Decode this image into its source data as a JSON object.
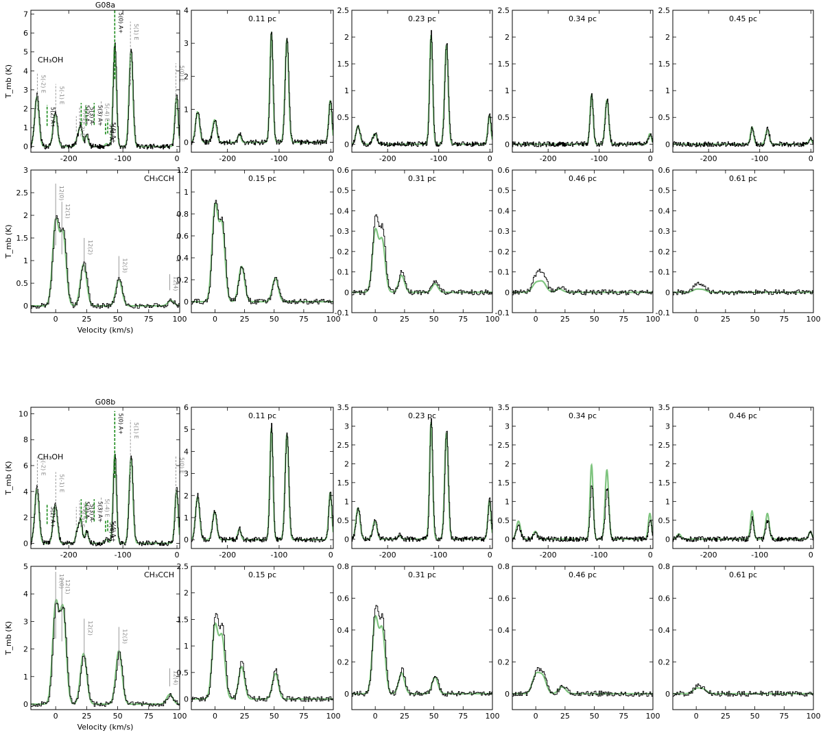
{
  "labels": {
    "velocity_xlabel": "Velocity (km/s)",
    "tmb_ylabel": "T_mb (K)"
  },
  "chart_data": [
    {
      "type": "line",
      "source": "G08a",
      "row": "ch3oh",
      "title": "G08a",
      "molecule": "CH₃OH",
      "xlim": [
        -270,
        5
      ],
      "ylim": [
        -0.3,
        7.2
      ],
      "xticks": [
        -200,
        -100,
        0
      ],
      "yticks": [
        0,
        1,
        2,
        3,
        4,
        5,
        6,
        7
      ],
      "model_scale": 1.0,
      "peaks": [
        [
          -259,
          2.7,
          4
        ],
        [
          -225,
          1.8,
          4
        ],
        [
          -184,
          0.45,
          3
        ],
        [
          -178,
          1.1,
          3
        ],
        [
          -167,
          0.6,
          3
        ],
        [
          -130,
          0.15,
          3
        ],
        [
          -115,
          5.5,
          3
        ],
        [
          -85,
          5.2,
          3.5
        ],
        [
          -1,
          2.7,
          3
        ]
      ],
      "markers": [
        {
          "x": -258,
          "h": 3.9,
          "text": "5(-2) E",
          "style": "gray"
        },
        {
          "x": -240,
          "h": 2.2,
          "text": "5(2) A+",
          "style": "green"
        },
        {
          "x": -224,
          "h": 3.3,
          "text": "5(-1) E",
          "style": "gray"
        },
        {
          "x": -186,
          "h": 1.6,
          "text": "5(-3) E",
          "style": "gray"
        },
        {
          "x": -180,
          "h": 2.1,
          "text": "5(3) E",
          "style": "gray"
        },
        {
          "x": -177,
          "h": 2.3,
          "text": "5(2) A-",
          "style": "green"
        },
        {
          "x": -168,
          "h": 2.2,
          "text": "5(3) A-",
          "style": "green"
        },
        {
          "x": -153,
          "h": 2.3,
          "text": "5(3) A+",
          "style": "green"
        },
        {
          "x": -140,
          "h": 2.4,
          "text": "5(-4) E",
          "style": "gray"
        },
        {
          "x": -132,
          "h": 1.3,
          "text": "5(4) A-",
          "style": "green"
        },
        {
          "x": -128,
          "h": 1.4,
          "text": "5(4) A+",
          "style": "green"
        },
        {
          "x": -115,
          "h": 7.2,
          "text": "5(0) A+",
          "style": "green"
        },
        {
          "x": -86,
          "h": 6.6,
          "text": "5(1) E",
          "style": "gray"
        },
        {
          "x": -2,
          "h": 4.4,
          "text": "5(0) E",
          "style": "gray"
        }
      ]
    },
    {
      "type": "line",
      "source": "G08a",
      "row": "ch3oh",
      "title": "0.11 pc",
      "xlim": [
        -270,
        5
      ],
      "ylim": [
        -0.3,
        4.0
      ],
      "xticks": [
        -200,
        -100,
        0
      ],
      "yticks": [
        0,
        1,
        2,
        3,
        4
      ],
      "model_scale": 1.0,
      "peaks": [
        [
          -258,
          0.95,
          4
        ],
        [
          -225,
          0.7,
          4
        ],
        [
          -177,
          0.25,
          3
        ],
        [
          -115,
          3.4,
          3
        ],
        [
          -85,
          3.2,
          3.5
        ],
        [
          -1,
          1.3,
          3
        ]
      ],
      "markers": []
    },
    {
      "type": "line",
      "source": "G08a",
      "row": "ch3oh",
      "title": "0.23 pc",
      "xlim": [
        -270,
        5
      ],
      "ylim": [
        -0.15,
        2.5
      ],
      "xticks": [
        -200,
        -100,
        0
      ],
      "yticks": [
        0.0,
        0.5,
        1.0,
        1.5,
        2.0,
        2.5
      ],
      "model_scale": 1.0,
      "peaks": [
        [
          -258,
          0.35,
          4
        ],
        [
          -225,
          0.2,
          4
        ],
        [
          -115,
          2.1,
          3
        ],
        [
          -85,
          1.9,
          3.5
        ],
        [
          -1,
          0.55,
          3
        ]
      ],
      "markers": []
    },
    {
      "type": "line",
      "source": "G08a",
      "row": "ch3oh",
      "title": "0.34 pc",
      "xlim": [
        -270,
        5
      ],
      "ylim": [
        -0.15,
        2.5
      ],
      "xticks": [
        -200,
        -100,
        0
      ],
      "yticks": [
        0.0,
        0.5,
        1.0,
        1.5,
        2.0,
        2.5
      ],
      "model_scale": 1.0,
      "peaks": [
        [
          -115,
          0.95,
          3
        ],
        [
          -85,
          0.85,
          3.5
        ],
        [
          -1,
          0.2,
          3
        ]
      ],
      "markers": []
    },
    {
      "type": "line",
      "source": "G08a",
      "row": "ch3oh",
      "title": "0.45 pc",
      "xlim": [
        -270,
        5
      ],
      "ylim": [
        -0.15,
        2.5
      ],
      "xticks": [
        -200,
        -100,
        0
      ],
      "yticks": [
        0.0,
        0.5,
        1.0,
        1.5,
        2.0,
        2.5
      ],
      "model_scale": 1.0,
      "peaks": [
        [
          -115,
          0.33,
          3
        ],
        [
          -85,
          0.28,
          3.5
        ],
        [
          -1,
          0.1,
          3
        ]
      ],
      "markers": []
    },
    {
      "type": "line",
      "source": "G08a",
      "row": "ch3cch",
      "title": "",
      "molecule": "CH₃CCH",
      "xlim": [
        -20,
        100
      ],
      "ylim": [
        -0.15,
        3.0
      ],
      "xticks": [
        0,
        25,
        50,
        75,
        100
      ],
      "yticks": [
        0.0,
        0.5,
        1.0,
        1.5,
        2.0,
        2.5,
        3.0
      ],
      "model_scale": 1.0,
      "peaks": [
        [
          0,
          1.9,
          2.5
        ],
        [
          6,
          1.6,
          2.5
        ],
        [
          22.5,
          0.95,
          2.5
        ],
        [
          51,
          0.6,
          2.5
        ],
        [
          93,
          0.12,
          2.5
        ]
      ],
      "markers": [
        {
          "x": 0,
          "h": 2.7,
          "text": "12(0)",
          "style": "gray"
        },
        {
          "x": 5,
          "h": 2.3,
          "text": "12(1)",
          "style": "gray"
        },
        {
          "x": 23,
          "h": 1.5,
          "text": "12(2)",
          "style": "gray"
        },
        {
          "x": 51,
          "h": 1.1,
          "text": "12(3)",
          "style": "gray"
        },
        {
          "x": 92,
          "h": 0.7,
          "text": "12(4)",
          "style": "gray"
        }
      ]
    },
    {
      "type": "line",
      "source": "G08a",
      "row": "ch3cch",
      "title": "0.15 pc",
      "xlim": [
        -20,
        100
      ],
      "ylim": [
        -0.1,
        1.2
      ],
      "xticks": [
        0,
        25,
        50,
        75,
        100
      ],
      "yticks": [
        0.0,
        0.2,
        0.4,
        0.6,
        0.8,
        1.0,
        1.2
      ],
      "model_scale": 1.0,
      "peaks": [
        [
          0,
          0.88,
          2.5
        ],
        [
          6,
          0.7,
          2.5
        ],
        [
          22.5,
          0.33,
          2.5
        ],
        [
          51,
          0.22,
          2.5
        ]
      ],
      "markers": []
    },
    {
      "type": "line",
      "source": "G08a",
      "row": "ch3cch",
      "title": "0.31 pc",
      "xlim": [
        -20,
        100
      ],
      "ylim": [
        -0.1,
        0.6
      ],
      "xticks": [
        0,
        25,
        50,
        75,
        100
      ],
      "yticks": [
        -0.1,
        0.0,
        0.1,
        0.2,
        0.3,
        0.4,
        0.5,
        0.6
      ],
      "model_scale": 0.85,
      "peaks": [
        [
          0,
          0.36,
          2.5
        ],
        [
          6,
          0.3,
          2.5
        ],
        [
          22.5,
          0.1,
          2.5
        ],
        [
          51,
          0.05,
          2.5
        ]
      ],
      "markers": []
    },
    {
      "type": "line",
      "source": "G08a",
      "row": "ch3cch",
      "title": "0.46 pc",
      "xlim": [
        -20,
        100
      ],
      "ylim": [
        -0.1,
        0.6
      ],
      "xticks": [
        0,
        25,
        50,
        75,
        100
      ],
      "yticks": [
        -0.1,
        0.0,
        0.1,
        0.2,
        0.3,
        0.4,
        0.5,
        0.6
      ],
      "model_scale": 0.55,
      "peaks": [
        [
          0,
          0.08,
          3
        ],
        [
          6,
          0.09,
          3
        ],
        [
          20,
          0.03,
          3
        ]
      ],
      "markers": []
    },
    {
      "type": "line",
      "source": "G08a",
      "row": "ch3cch",
      "title": "0.61 pc",
      "xlim": [
        -20,
        100
      ],
      "ylim": [
        -0.1,
        0.6
      ],
      "xticks": [
        0,
        25,
        50,
        75,
        100
      ],
      "yticks": [
        -0.1,
        0.0,
        0.1,
        0.2,
        0.3,
        0.4,
        0.5,
        0.6
      ],
      "model_scale": 0.4,
      "peaks": [
        [
          0,
          0.035,
          3
        ],
        [
          6,
          0.03,
          3
        ]
      ],
      "markers": []
    },
    {
      "type": "line",
      "source": "G08b",
      "row": "ch3oh",
      "title": "G08b",
      "molecule": "CH₃OH",
      "xlim": [
        -270,
        5
      ],
      "ylim": [
        -0.4,
        10.5
      ],
      "xticks": [
        -200,
        -100,
        0
      ],
      "yticks": [
        0,
        2,
        4,
        6,
        8,
        10
      ],
      "model_scale": 1.0,
      "peaks": [
        [
          -259,
          4.3,
          4
        ],
        [
          -225,
          3.0,
          4
        ],
        [
          -184,
          1.0,
          3
        ],
        [
          -178,
          1.7,
          3
        ],
        [
          -167,
          1.0,
          3
        ],
        [
          -130,
          0.3,
          3
        ],
        [
          -115,
          7.0,
          3
        ],
        [
          -85,
          6.8,
          3.5
        ],
        [
          -1,
          4.2,
          3
        ]
      ],
      "markers": [
        {
          "x": -258,
          "h": 6.8,
          "text": "5(-2) E",
          "style": "gray"
        },
        {
          "x": -240,
          "h": 3.0,
          "text": "5(2) A+",
          "style": "green"
        },
        {
          "x": -224,
          "h": 5.5,
          "text": "5(-1) E",
          "style": "gray"
        },
        {
          "x": -186,
          "h": 2.8,
          "text": "5(-3) E",
          "style": "gray"
        },
        {
          "x": -180,
          "h": 3.3,
          "text": "5(3) E",
          "style": "gray"
        },
        {
          "x": -177,
          "h": 3.4,
          "text": "5(2) A-",
          "style": "green"
        },
        {
          "x": -168,
          "h": 3.2,
          "text": "5(3) A-",
          "style": "green"
        },
        {
          "x": -153,
          "h": 3.4,
          "text": "5(3) A+",
          "style": "green"
        },
        {
          "x": -140,
          "h": 3.6,
          "text": "5(-4) E",
          "style": "gray"
        },
        {
          "x": -132,
          "h": 1.8,
          "text": "5(4) A-",
          "style": "green"
        },
        {
          "x": -128,
          "h": 1.9,
          "text": "5(4) A+",
          "style": "green"
        },
        {
          "x": -115,
          "h": 10.2,
          "text": "5(0) A+",
          "style": "green"
        },
        {
          "x": -86,
          "h": 9.5,
          "text": "5(1) E",
          "style": "gray"
        },
        {
          "x": -2,
          "h": 6.8,
          "text": "5(0) E",
          "style": "gray"
        }
      ]
    },
    {
      "type": "line",
      "source": "G08b",
      "row": "ch3oh",
      "title": "0.11 pc",
      "xlim": [
        -270,
        5
      ],
      "ylim": [
        -0.4,
        6.0
      ],
      "xticks": [
        -200,
        -100,
        0
      ],
      "yticks": [
        0,
        1,
        2,
        3,
        4,
        5,
        6
      ],
      "model_scale": 1.0,
      "peaks": [
        [
          -258,
          2.0,
          4
        ],
        [
          -225,
          1.3,
          4
        ],
        [
          -177,
          0.5,
          3
        ],
        [
          -115,
          5.2,
          3
        ],
        [
          -85,
          4.9,
          3.5
        ],
        [
          -1,
          2.2,
          3
        ]
      ],
      "markers": []
    },
    {
      "type": "line",
      "source": "G08b",
      "row": "ch3oh",
      "title": "0.23 pc",
      "xlim": [
        -270,
        5
      ],
      "ylim": [
        -0.25,
        3.5
      ],
      "xticks": [
        -200,
        -100,
        0
      ],
      "yticks": [
        0.0,
        0.5,
        1.0,
        1.5,
        2.0,
        2.5,
        3.0,
        3.5
      ],
      "model_scale": 1.0,
      "peaks": [
        [
          -258,
          0.85,
          4
        ],
        [
          -225,
          0.5,
          4
        ],
        [
          -177,
          0.1,
          3
        ],
        [
          -115,
          3.2,
          3
        ],
        [
          -85,
          2.9,
          3.5
        ],
        [
          -1,
          1.05,
          3
        ]
      ],
      "markers": []
    },
    {
      "type": "line",
      "source": "G08b",
      "row": "ch3oh",
      "title": "0.34 pc",
      "xlim": [
        -270,
        5
      ],
      "ylim": [
        -0.25,
        3.5
      ],
      "xticks": [
        -200,
        -100,
        0
      ],
      "yticks": [
        0.0,
        0.5,
        1.0,
        1.5,
        2.0,
        2.5,
        3.0,
        3.5
      ],
      "model_scale": 1.4,
      "peaks": [
        [
          -258,
          0.35,
          4
        ],
        [
          -225,
          0.15,
          4
        ],
        [
          -115,
          1.45,
          3
        ],
        [
          -85,
          1.35,
          3.5
        ],
        [
          -1,
          0.5,
          3
        ]
      ],
      "markers": []
    },
    {
      "type": "line",
      "source": "G08b",
      "row": "ch3oh",
      "title": "0.46 pc",
      "xlim": [
        -270,
        5
      ],
      "ylim": [
        -0.25,
        3.5
      ],
      "xticks": [
        -200,
        -100,
        0
      ],
      "yticks": [
        0.0,
        0.5,
        1.0,
        1.5,
        2.0,
        2.5,
        3.0,
        3.5
      ],
      "model_scale": 1.4,
      "peaks": [
        [
          -258,
          0.1,
          4
        ],
        [
          -115,
          0.55,
          3
        ],
        [
          -85,
          0.5,
          3.5
        ],
        [
          -1,
          0.15,
          3
        ]
      ],
      "markers": []
    },
    {
      "type": "line",
      "source": "G08b",
      "row": "ch3cch",
      "title": "",
      "molecule": "CH₃CCH",
      "xlim": [
        -20,
        100
      ],
      "ylim": [
        -0.2,
        5.0
      ],
      "xticks": [
        0,
        25,
        50,
        75,
        100
      ],
      "yticks": [
        0,
        1,
        2,
        3,
        4,
        5
      ],
      "model_scale": 1.05,
      "peaks": [
        [
          0,
          3.5,
          2.5
        ],
        [
          6,
          3.3,
          2.5
        ],
        [
          22.5,
          1.8,
          2.5
        ],
        [
          51,
          1.9,
          2.5
        ],
        [
          92,
          0.35,
          2.5
        ]
      ],
      "markers": [
        {
          "x": 0,
          "h": 4.8,
          "text": "12(0)",
          "style": "gray"
        },
        {
          "x": 5,
          "h": 4.6,
          "text": "12(1)",
          "style": "gray"
        },
        {
          "x": 23,
          "h": 3.1,
          "text": "12(2)",
          "style": "gray"
        },
        {
          "x": 51,
          "h": 2.8,
          "text": "12(3)",
          "style": "gray"
        },
        {
          "x": 92,
          "h": 1.3,
          "text": "12(4)",
          "style": "gray"
        }
      ]
    },
    {
      "type": "line",
      "source": "G08b",
      "row": "ch3cch",
      "title": "0.15 pc",
      "xlim": [
        -20,
        100
      ],
      "ylim": [
        -0.2,
        2.5
      ],
      "xticks": [
        0,
        25,
        50,
        75,
        100
      ],
      "yticks": [
        0.0,
        0.5,
        1.0,
        1.5,
        2.0,
        2.5
      ],
      "model_scale": 0.9,
      "peaks": [
        [
          0,
          1.55,
          2.5
        ],
        [
          6,
          1.3,
          2.5
        ],
        [
          22.5,
          0.7,
          2.5
        ],
        [
          51,
          0.55,
          2.5
        ]
      ],
      "markers": []
    },
    {
      "type": "line",
      "source": "G08b",
      "row": "ch3cch",
      "title": "0.31 pc",
      "xlim": [
        -20,
        100
      ],
      "ylim": [
        -0.1,
        0.8
      ],
      "xticks": [
        0,
        25,
        50,
        75,
        100
      ],
      "yticks": [
        0.0,
        0.2,
        0.4,
        0.6,
        0.8
      ],
      "model_scale": 0.9,
      "peaks": [
        [
          0,
          0.53,
          2.5
        ],
        [
          6,
          0.45,
          2.5
        ],
        [
          22.5,
          0.15,
          2.5
        ],
        [
          51,
          0.12,
          2.5
        ]
      ],
      "markers": []
    },
    {
      "type": "line",
      "source": "G08b",
      "row": "ch3cch",
      "title": "0.46 pc",
      "xlim": [
        -20,
        100
      ],
      "ylim": [
        -0.1,
        0.8
      ],
      "xticks": [
        0,
        25,
        50,
        75,
        100
      ],
      "yticks": [
        0.0,
        0.2,
        0.4,
        0.6,
        0.8
      ],
      "model_scale": 0.9,
      "peaks": [
        [
          0,
          0.13,
          3
        ],
        [
          6,
          0.12,
          3
        ],
        [
          22.5,
          0.05,
          3
        ]
      ],
      "markers": []
    },
    {
      "type": "line",
      "source": "G08b",
      "row": "ch3cch",
      "title": "0.61 pc",
      "xlim": [
        -20,
        100
      ],
      "ylim": [
        -0.1,
        0.8
      ],
      "xticks": [
        0,
        25,
        50,
        75,
        100
      ],
      "yticks": [
        0.0,
        0.2,
        0.4,
        0.6,
        0.8
      ],
      "model_scale": 0.8,
      "peaks": [
        [
          0,
          0.04,
          3
        ],
        [
          6,
          0.035,
          3
        ]
      ],
      "markers": []
    }
  ]
}
